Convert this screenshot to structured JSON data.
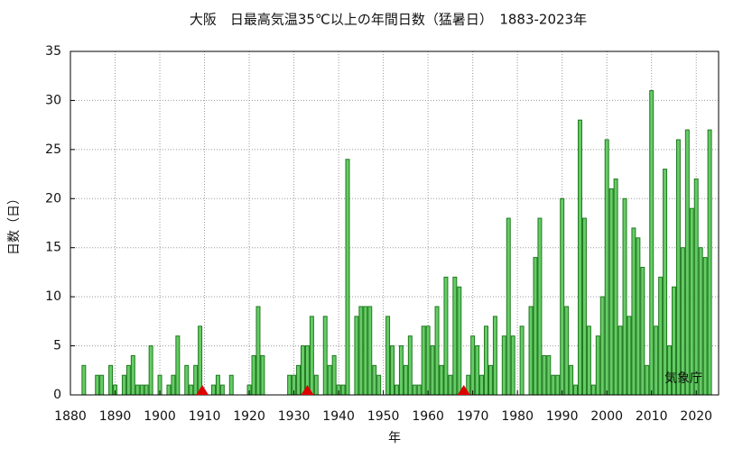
{
  "chart_data": {
    "type": "bar",
    "title": "大阪　日最高気温35℃以上の年間日数（猛暑日）　1883-2023年",
    "xlabel": "年",
    "ylabel": "日数（日）",
    "annotation": "気象庁",
    "color": "#66cc66",
    "edgecolor": "#1f7a1f",
    "grid": true,
    "xlim": [
      1880,
      2025
    ],
    "ylim": [
      0,
      35
    ],
    "xticks": [
      1880,
      1890,
      1900,
      1910,
      1920,
      1930,
      1940,
      1950,
      1960,
      1970,
      1980,
      1990,
      2000,
      2010,
      2020
    ],
    "yticks": [
      0,
      5,
      10,
      15,
      20,
      25,
      30,
      35
    ],
    "markers": {
      "color": "#dd0000",
      "x": [
        1909.5,
        1933,
        1968
      ]
    },
    "x": [
      1883,
      1884,
      1885,
      1886,
      1887,
      1888,
      1889,
      1890,
      1891,
      1892,
      1893,
      1894,
      1895,
      1896,
      1897,
      1898,
      1899,
      1900,
      1901,
      1902,
      1903,
      1904,
      1905,
      1906,
      1907,
      1908,
      1909,
      1910,
      1911,
      1912,
      1913,
      1914,
      1915,
      1916,
      1917,
      1918,
      1919,
      1920,
      1921,
      1922,
      1923,
      1924,
      1925,
      1926,
      1927,
      1928,
      1929,
      1930,
      1931,
      1932,
      1933,
      1934,
      1935,
      1936,
      1937,
      1938,
      1939,
      1940,
      1941,
      1942,
      1943,
      1944,
      1945,
      1946,
      1947,
      1948,
      1949,
      1950,
      1951,
      1952,
      1953,
      1954,
      1955,
      1956,
      1957,
      1958,
      1959,
      1960,
      1961,
      1962,
      1963,
      1964,
      1965,
      1966,
      1967,
      1968,
      1969,
      1970,
      1971,
      1972,
      1973,
      1974,
      1975,
      1976,
      1977,
      1978,
      1979,
      1980,
      1981,
      1982,
      1983,
      1984,
      1985,
      1986,
      1987,
      1988,
      1989,
      1990,
      1991,
      1992,
      1993,
      1994,
      1995,
      1996,
      1997,
      1998,
      1999,
      2000,
      2001,
      2002,
      2003,
      2004,
      2005,
      2006,
      2007,
      2008,
      2009,
      2010,
      2011,
      2012,
      2013,
      2014,
      2015,
      2016,
      2017,
      2018,
      2019,
      2020,
      2021,
      2022,
      2023
    ],
    "values": [
      3,
      0,
      0,
      2,
      2,
      0,
      3,
      1,
      0,
      2,
      3,
      4,
      1,
      1,
      1,
      5,
      0,
      2,
      0,
      1,
      2,
      6,
      0,
      3,
      1,
      3,
      7,
      0,
      0,
      1,
      2,
      1,
      0,
      2,
      0,
      0,
      0,
      1,
      4,
      9,
      4,
      0,
      0,
      0,
      0,
      0,
      2,
      2,
      3,
      5,
      5,
      8,
      2,
      0,
      8,
      3,
      4,
      1,
      1,
      24,
      0,
      8,
      9,
      9,
      9,
      3,
      2,
      0,
      8,
      5,
      1,
      5,
      3,
      6,
      1,
      1,
      7,
      7,
      5,
      9,
      3,
      12,
      2,
      12,
      11,
      0,
      2,
      6,
      5,
      2,
      7,
      3,
      8,
      0,
      6,
      18,
      6,
      0,
      7,
      0,
      9,
      14,
      18,
      4,
      4,
      2,
      2,
      20,
      9,
      3,
      1,
      28,
      18,
      7,
      1,
      6,
      10,
      26,
      21,
      22,
      7,
      20,
      8,
      17,
      16,
      13,
      3,
      31,
      7,
      12,
      23,
      5,
      11,
      26,
      15,
      27,
      19,
      22,
      15,
      14,
      27
    ]
  }
}
